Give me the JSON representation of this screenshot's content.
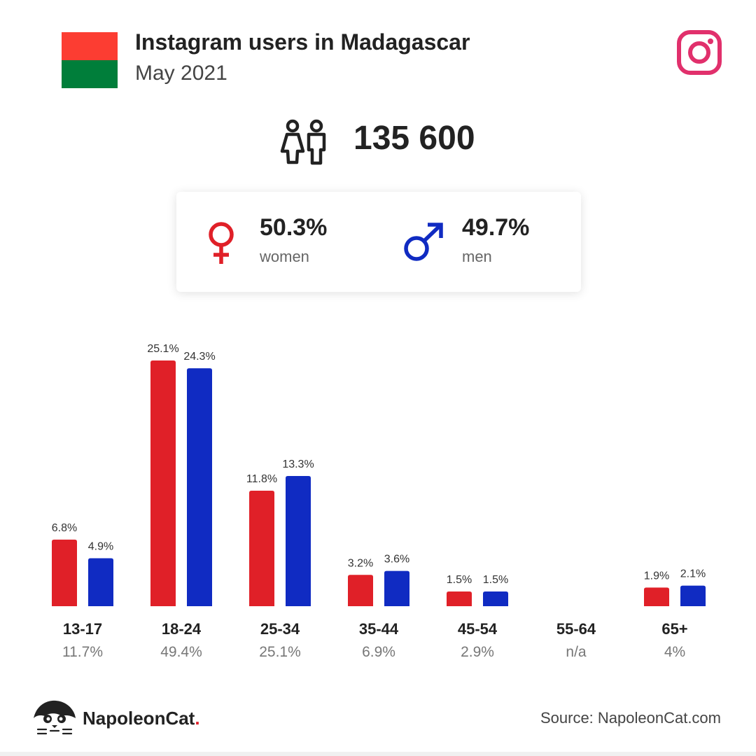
{
  "header": {
    "title": "Instagram users in Madagascar",
    "subtitle": "May 2021",
    "total_users": "135 600"
  },
  "gender": {
    "women_pct": "50.3%",
    "women_label": "women",
    "men_pct": "49.7%",
    "men_label": "men"
  },
  "colors": {
    "women": "#e02028",
    "men": "#102bc2",
    "instagram": "#e1306c",
    "flag_red": "#fc3d32",
    "flag_green": "#007e3a"
  },
  "icons": {
    "flag": "madagascar-flag-icon",
    "instagram": "instagram-icon",
    "people": "people-icon",
    "female": "female-symbol-icon",
    "male": "male-symbol-icon",
    "logo": "napoleoncat-logo-icon"
  },
  "chart_data": {
    "type": "bar",
    "categories": [
      "13-17",
      "18-24",
      "25-34",
      "35-44",
      "45-54",
      "55-64",
      "65+"
    ],
    "category_totals": [
      "11.7%",
      "49.4%",
      "25.1%",
      "6.9%",
      "2.9%",
      "n/a",
      "4%"
    ],
    "series": [
      {
        "name": "women",
        "values": [
          6.8,
          25.1,
          11.8,
          3.2,
          1.5,
          null,
          1.9
        ],
        "labels": [
          "6.8%",
          "25.1%",
          "11.8%",
          "3.2%",
          "1.5%",
          "",
          "1.9%"
        ]
      },
      {
        "name": "men",
        "values": [
          4.9,
          24.3,
          13.3,
          3.6,
          1.5,
          null,
          2.1
        ],
        "labels": [
          "4.9%",
          "24.3%",
          "13.3%",
          "3.6%",
          "1.5%",
          "",
          "2.1%"
        ]
      }
    ],
    "ylim": [
      0,
      25.1
    ],
    "grid": false
  },
  "footer": {
    "brand": "NapoleonCat",
    "brand_dot": ".",
    "source": "Source: NapoleonCat.com"
  }
}
